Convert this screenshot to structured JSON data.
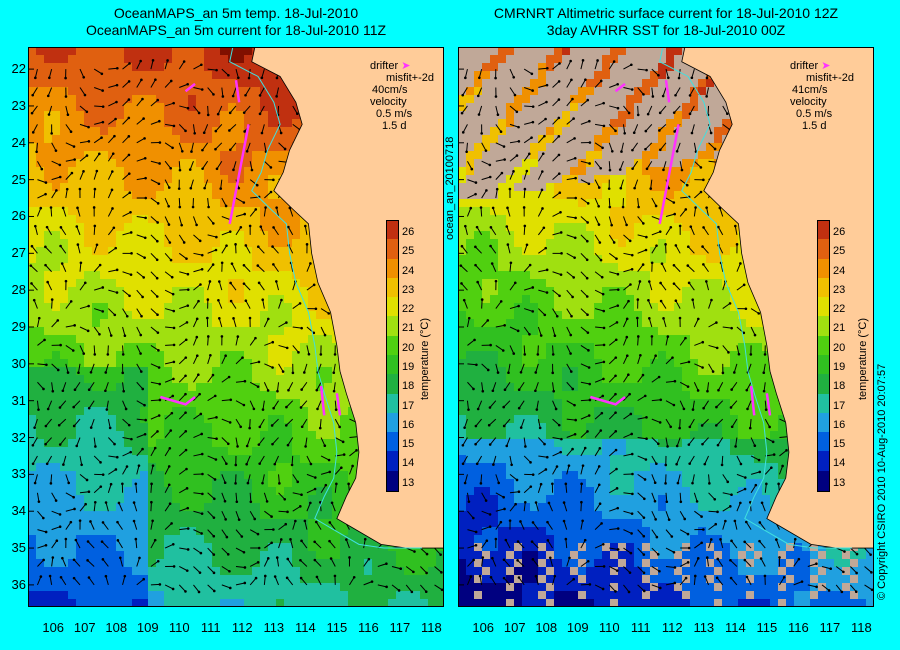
{
  "left_panel": {
    "title_line1": "OceanMAPS_an 5m temp. 18-Jul-2010",
    "title_line2": "OceanMAPS_an 5m current for 18-Jul-2010 11Z",
    "legend": {
      "drifter": "drifter",
      "misfit": "misfit+-2d",
      "misfit_speed": "40cm/s",
      "velocity": "velocity",
      "scale": "0.5 m/s",
      "duration": "1.5 d"
    }
  },
  "right_panel": {
    "title_line1": "CMRNRT Altimetric surface current for 18-Jul-2010 12Z",
    "title_line2": "3day AVHRR SST for 18-Jul-2010 00Z",
    "legend": {
      "drifter": "drifter",
      "misfit": "misfit+-2d",
      "misfit_speed": "41cm/s",
      "velocity": "velocity",
      "scale": "0.5 m/s",
      "duration": "1.5 d"
    }
  },
  "side_labels": {
    "middle": "ocean_an_20100718",
    "right": "© Copyright CSIRO 2010   10-Aug-2010 20:07:57"
  },
  "colorbar": {
    "title": "temperature (°C)",
    "ticks": [
      "26",
      "25",
      "24",
      "23",
      "22",
      "21",
      "20",
      "19",
      "18",
      "17",
      "16",
      "15",
      "14",
      "13"
    ]
  },
  "axes": {
    "lat_ticks": [
      "22",
      "23",
      "24",
      "25",
      "26",
      "27",
      "28",
      "29",
      "30",
      "31",
      "32",
      "33",
      "34",
      "35",
      "36"
    ],
    "lon_ticks": [
      "106",
      "107",
      "108",
      "109",
      "110",
      "111",
      "112",
      "113",
      "114",
      "115",
      "116",
      "117",
      "118"
    ],
    "lon_range": [
      105.2,
      118.4
    ],
    "lat_range": [
      21.4,
      36.6
    ]
  },
  "colors": {
    "background": "#00ffff",
    "land": "#ffcc99",
    "drifter": "#ff33ff",
    "sst_warm": "#e05a10",
    "sst_cool": "#1030c0"
  }
}
